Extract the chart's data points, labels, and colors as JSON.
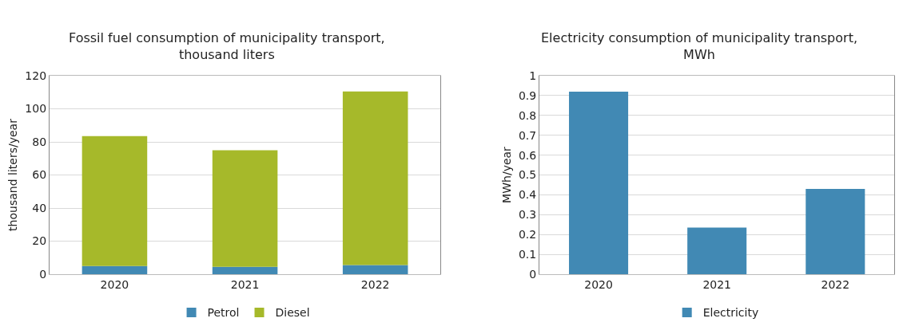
{
  "chart_data": [
    {
      "type": "bar",
      "title": "Fossil fuel consumption of municipality transport,\nthousand liters",
      "ylabel": "thousand liters/year",
      "categories": [
        "2020",
        "2021",
        "2022"
      ],
      "stacked": true,
      "series": [
        {
          "name": "Petrol",
          "color": "#4189b4",
          "values": [
            5,
            4.5,
            5.5
          ]
        },
        {
          "name": "Diesel",
          "color": "#a6b92a",
          "values": [
            78.5,
            70.5,
            105
          ]
        }
      ],
      "ylim": [
        0,
        120
      ],
      "yticks": [
        0,
        20,
        40,
        60,
        80,
        100,
        120
      ],
      "grid": "y",
      "legend": "bottom"
    },
    {
      "type": "bar",
      "title": "Electricity consumption of municipality transport,\nMWh",
      "ylabel": "MWh/year",
      "categories": [
        "2020",
        "2021",
        "2022"
      ],
      "series": [
        {
          "name": "Electricity",
          "color": "#4189b4",
          "values": [
            0.92,
            0.235,
            0.43
          ]
        }
      ],
      "ylim": [
        0,
        1
      ],
      "yticks": [
        0,
        0.1,
        0.2,
        0.3,
        0.4,
        0.5,
        0.6,
        0.7,
        0.8,
        0.9,
        1
      ],
      "grid": "y",
      "legend": "bottom"
    }
  ]
}
